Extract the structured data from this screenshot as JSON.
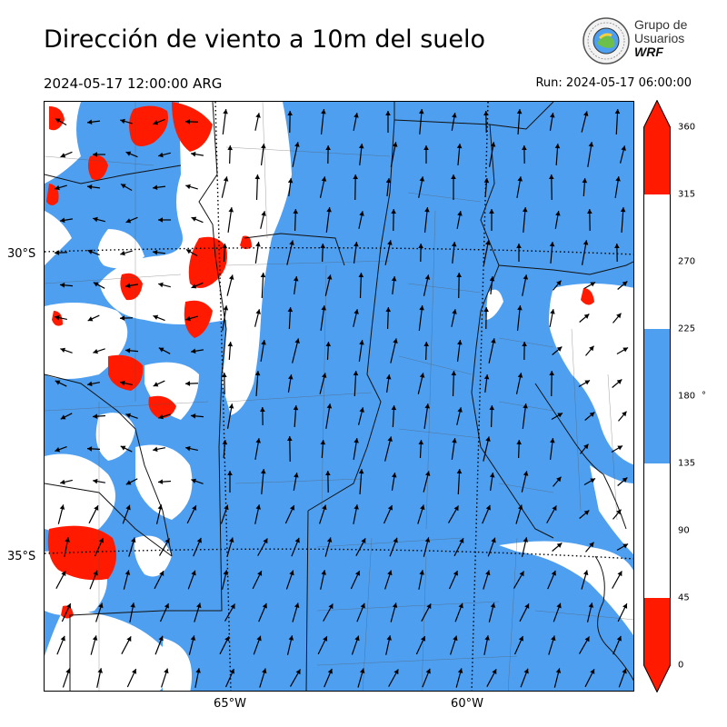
{
  "header": {
    "title": "Dirección de viento a 10m del suelo",
    "valid_time": "2024-05-17 12:00:00 ARG",
    "run_time": "Run: 2024-05-17 06:00:00"
  },
  "logo": {
    "line1": "Grupo de",
    "line2": "Usuarios",
    "line3": "WRF"
  },
  "map": {
    "lat_labels": [
      "30°S",
      "35°S"
    ],
    "lon_labels": [
      "65°W",
      "60°W"
    ],
    "colors": {
      "band_0_45": "#ff1a00",
      "band_45_135": "#ffffff",
      "band_135_225": "#4e9ff0",
      "band_225_315": "#ffffff",
      "band_315_360": "#ff1a00"
    }
  },
  "colorbar": {
    "ticks": [
      "0",
      "45",
      "90",
      "135",
      "180",
      "225",
      "270",
      "315",
      "360"
    ],
    "unit": "°"
  }
}
